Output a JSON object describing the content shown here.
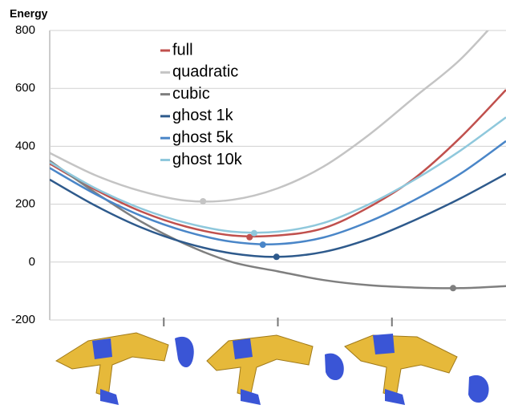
{
  "chart_data": {
    "type": "line",
    "y_label": "Energy",
    "x": [
      0,
      10,
      20,
      30,
      40,
      50,
      60,
      70,
      80,
      90,
      100
    ],
    "xlim": [
      0,
      100
    ],
    "xticks": [
      25,
      50,
      75
    ],
    "ylim": [
      -200,
      800
    ],
    "yticks": [
      -200,
      0,
      200,
      400,
      600,
      800
    ],
    "grid": true,
    "series": [
      {
        "name": "full",
        "color": "#c0504d",
        "values": [
          340,
          250,
          175,
          122,
          92,
          92,
          117,
          190,
          290,
          430,
          595
        ],
        "min": {
          "x": 43.8,
          "y": 86
        }
      },
      {
        "name": "quadratic",
        "color": "#c4c4c4",
        "values": [
          377,
          300,
          245,
          212,
          215,
          255,
          330,
          440,
          570,
          700,
          870
        ],
        "min": {
          "x": 33.6,
          "y": 210
        }
      },
      {
        "name": "cubic",
        "color": "#7f7f7f",
        "values": [
          350,
          240,
          140,
          60,
          0,
          -32,
          -62,
          -80,
          -88,
          -90,
          -83
        ],
        "min": {
          "x": 88.4,
          "y": -90
        }
      },
      {
        "name": "ghost 1k",
        "color": "#2e5a8c",
        "values": [
          285,
          195,
          120,
          65,
          30,
          18,
          35,
          80,
          145,
          220,
          305
        ],
        "min": {
          "x": 49.7,
          "y": 18
        }
      },
      {
        "name": "ghost 5k",
        "color": "#4a86c8",
        "values": [
          325,
          235,
          160,
          105,
          70,
          62,
          85,
          140,
          215,
          305,
          418
        ],
        "min": {
          "x": 46.7,
          "y": 60
        }
      },
      {
        "name": "ghost 10k",
        "color": "#8fc8dc",
        "values": [
          345,
          255,
          185,
          135,
          105,
          105,
          135,
          200,
          285,
          385,
          500
        ],
        "min": {
          "x": 44.8,
          "y": 100
        }
      }
    ]
  }
}
